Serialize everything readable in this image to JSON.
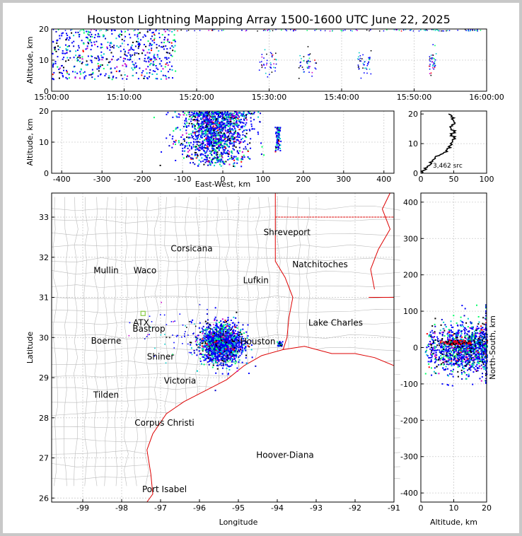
{
  "chart_data": [
    {
      "panel": "time-altitude",
      "type": "scatter",
      "title": "Houston Lightning Mapping Array 1500-1600 UTC June 22, 2025",
      "xlabel": "",
      "ylabel": "Altitude, km",
      "xticks": [
        "15:00:00",
        "15:10:00",
        "15:20:00",
        "15:30:00",
        "15:40:00",
        "15:50:00",
        "16:00:00"
      ],
      "yticks": [
        0,
        10,
        20
      ],
      "xlim": [
        0,
        60
      ],
      "ylim": [
        0,
        20
      ],
      "grid": true,
      "activity_minutes": [
        [
          0,
          17
        ],
        [
          28.5,
          31
        ],
        [
          34,
          36.5
        ],
        [
          42,
          44
        ],
        [
          52,
          53
        ]
      ]
    },
    {
      "panel": "east-west-altitude",
      "type": "scatter",
      "xlabel": "East-West, km",
      "ylabel": "Altitude, km",
      "xticks": [
        -400,
        -300,
        -200,
        -100,
        0,
        100,
        200,
        300,
        400
      ],
      "yticks": [
        0,
        10,
        20
      ],
      "xlim": [
        -425,
        425
      ],
      "ylim": [
        0,
        20
      ],
      "grid": true,
      "clusters": [
        {
          "x_center": -20,
          "x_spread": 45,
          "alt_range": [
            2,
            20
          ]
        },
        {
          "x_center": 135,
          "x_spread": 3,
          "alt_range": [
            7,
            15
          ]
        }
      ]
    },
    {
      "panel": "altitude-histogram",
      "type": "line",
      "xticks": [
        0,
        50,
        100
      ],
      "yticks": [
        0,
        10,
        20
      ],
      "xlim": [
        0,
        100
      ],
      "ylim": [
        0,
        21
      ],
      "annotation": "3,462 src",
      "profile": [
        [
          1,
          0
        ],
        [
          5,
          1
        ],
        [
          10,
          2
        ],
        [
          15,
          3
        ],
        [
          18,
          4
        ],
        [
          22,
          5
        ],
        [
          28,
          6
        ],
        [
          35,
          7
        ],
        [
          40,
          8
        ],
        [
          42,
          9
        ],
        [
          45,
          10
        ],
        [
          48,
          11
        ],
        [
          50,
          12
        ],
        [
          47,
          13
        ],
        [
          50,
          14
        ],
        [
          46,
          15
        ],
        [
          48,
          16
        ],
        [
          52,
          17
        ],
        [
          49,
          18
        ],
        [
          46,
          19
        ],
        [
          42,
          20
        ]
      ]
    },
    {
      "panel": "plan-view",
      "type": "scatter",
      "xlabel": "Longitude",
      "ylabel": "Latitude",
      "xticks": [
        -99,
        -98,
        -97,
        -96,
        -95,
        -94,
        -93,
        -92,
        -91
      ],
      "yticks": [
        26,
        27,
        28,
        29,
        30,
        31,
        32,
        33
      ],
      "xlim": [
        -99.8,
        -91
      ],
      "ylim": [
        25.9,
        33.6
      ],
      "grid": true,
      "place_labels": [
        {
          "text": "Shreveport",
          "lon": -93.75,
          "lat": 32.55,
          "color": "#000000"
        },
        {
          "text": "Corsicana",
          "lon": -96.2,
          "lat": 32.15,
          "color": "#000000"
        },
        {
          "text": "Natchitoches",
          "lon": -92.9,
          "lat": 31.75,
          "color": "#000000"
        },
        {
          "text": "Mullin",
          "lon": -98.4,
          "lat": 31.6,
          "color": "#ff8c42"
        },
        {
          "text": "Waco",
          "lon": -97.4,
          "lat": 31.6,
          "color": "#000000"
        },
        {
          "text": "Lufkin",
          "lon": -94.55,
          "lat": 31.35,
          "color": "#000000"
        },
        {
          "text": "ATX",
          "lon": -97.5,
          "lat": 30.3,
          "color": "#ff8c42"
        },
        {
          "text": "Bastrop",
          "lon": -97.3,
          "lat": 30.15,
          "color": "#000000"
        },
        {
          "text": "Lake Charles",
          "lon": -92.5,
          "lat": 30.3,
          "color": "#000000"
        },
        {
          "text": "Boerne",
          "lon": -98.4,
          "lat": 29.85,
          "color": "#000000"
        },
        {
          "text": "Houston",
          "lon": -94.5,
          "lat": 29.83,
          "color": "#ffa500"
        },
        {
          "text": "Shiner",
          "lon": -97.0,
          "lat": 29.45,
          "color": "#000000"
        },
        {
          "text": "Victoria",
          "lon": -96.5,
          "lat": 28.85,
          "color": "#000000"
        },
        {
          "text": "Tilden",
          "lon": -98.4,
          "lat": 28.5,
          "color": "#000000"
        },
        {
          "text": "Corpus Christi",
          "lon": -96.9,
          "lat": 27.8,
          "color": "#000000"
        },
        {
          "text": "Hoover-Diana",
          "lon": -93.8,
          "lat": 27.0,
          "color": "#0000ff"
        },
        {
          "text": "Port Isabel",
          "lon": -96.9,
          "lat": 26.15,
          "color": "#000000"
        }
      ],
      "clusters": [
        {
          "lon": -95.45,
          "lat": 29.85,
          "spread_lon": 0.5,
          "spread_lat": 0.4
        },
        {
          "lon": -93.95,
          "lat": 29.85,
          "spread_lon": 0.05,
          "spread_lat": 0.05
        }
      ]
    },
    {
      "panel": "altitude-north-south",
      "type": "scatter",
      "xlabel": "Altitude, km",
      "ylabel": "North-South, km",
      "xticks": [
        0,
        10,
        20
      ],
      "yticks": [
        -400,
        -300,
        -200,
        -100,
        0,
        100,
        200,
        300,
        400
      ],
      "xlim": [
        0,
        20
      ],
      "ylim": [
        -425,
        425
      ],
      "grid": true,
      "clusters": [
        {
          "y_center": 0,
          "y_spread": 60,
          "alt_range": [
            1,
            20
          ]
        },
        {
          "y_center": 15,
          "y_spread": 3,
          "alt_range": [
            5,
            15
          ]
        }
      ]
    }
  ],
  "colors": {
    "source_palette": [
      "#0000ff",
      "#0000cc",
      "#00cccc",
      "#00ff66",
      "#000000",
      "#cc00cc",
      "#ff0000"
    ],
    "state_line": "#dd0000",
    "county_line": "#bbbbbb",
    "grid": "#cccccc"
  }
}
